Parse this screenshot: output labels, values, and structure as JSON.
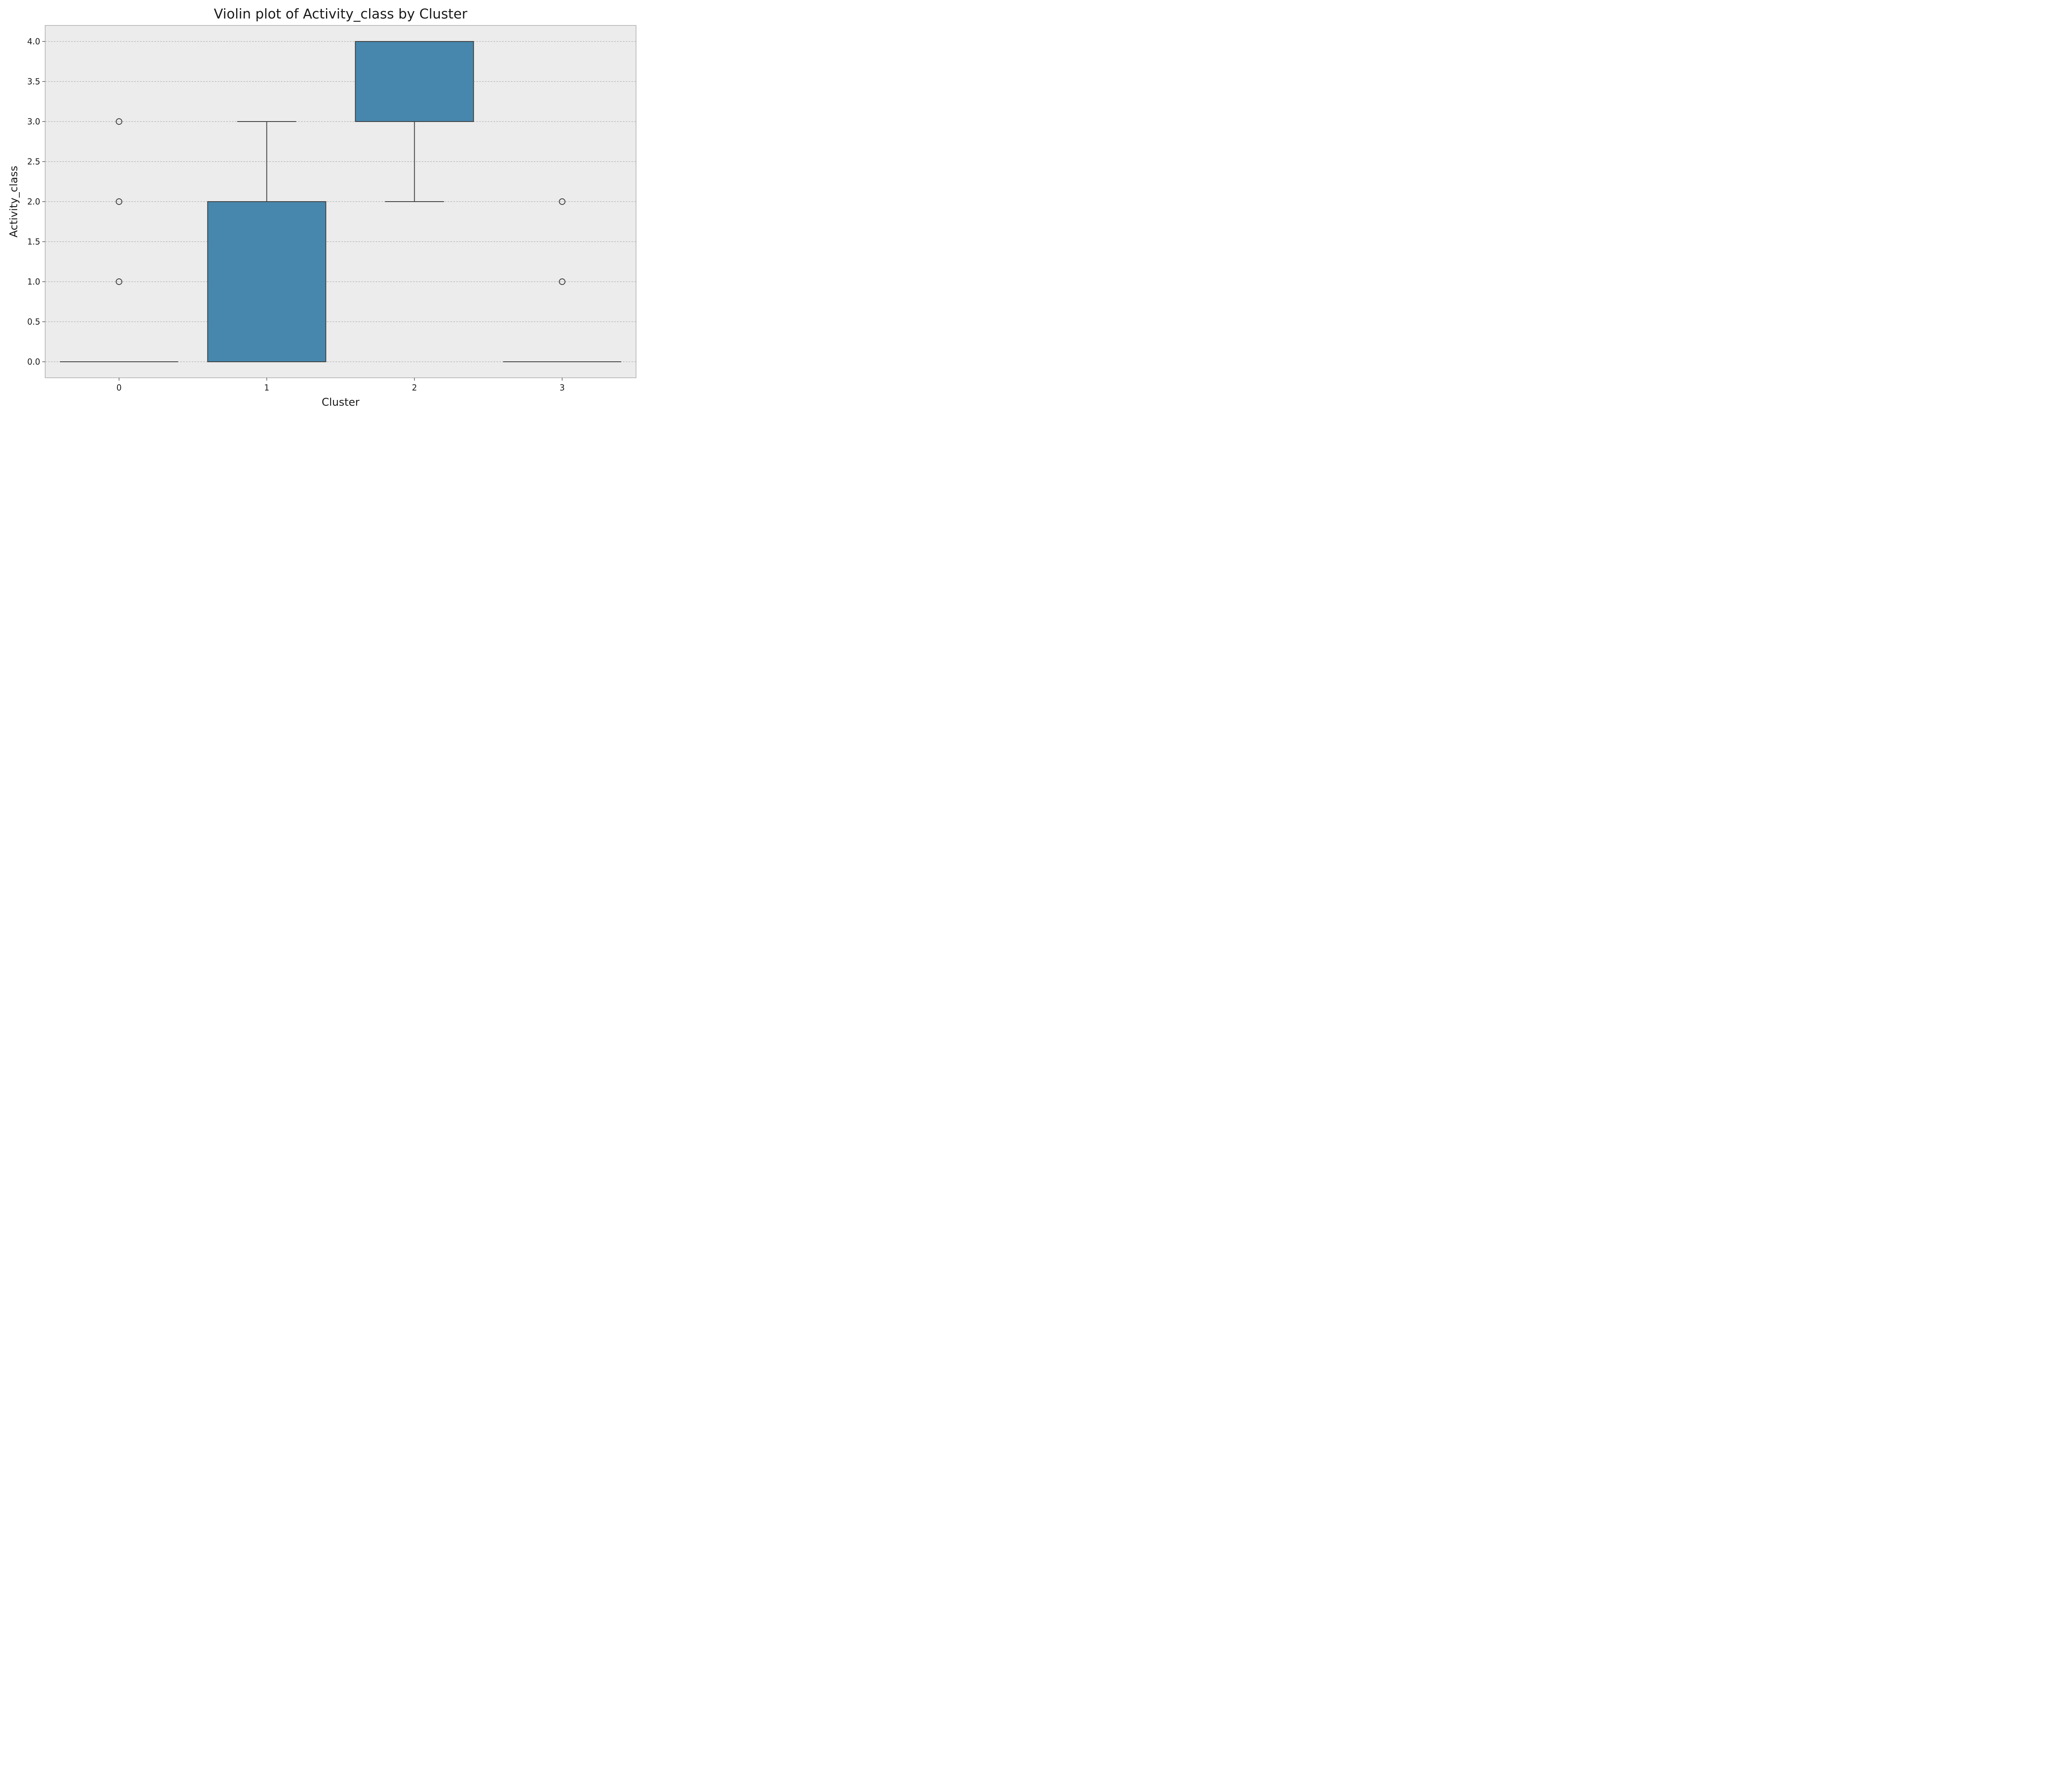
{
  "chart_data": {
    "type": "box",
    "title": "Violin plot of Activity_class by Cluster",
    "xlabel": "Cluster",
    "ylabel": "Activity_class",
    "categories": [
      "0",
      "1",
      "2",
      "3"
    ],
    "ylim": [
      -0.2,
      4.2
    ],
    "yticks": [
      0.0,
      0.5,
      1.0,
      1.5,
      2.0,
      2.5,
      3.0,
      3.5,
      4.0
    ],
    "ytick_labels": [
      "0.0",
      "0.5",
      "1.0",
      "1.5",
      "2.0",
      "2.5",
      "3.0",
      "3.5",
      "4.0"
    ],
    "grid": "horizontal dashed",
    "box_color": "#4787ad",
    "background_color": "#ececec",
    "boxes": [
      {
        "category": "0",
        "q1": 0,
        "median": 0,
        "q3": 0,
        "whisker_low": 0,
        "whisker_high": 0,
        "outliers": [
          1,
          2,
          3
        ]
      },
      {
        "category": "1",
        "q1": 0,
        "median": 0,
        "q3": 2,
        "whisker_low": 0,
        "whisker_high": 3,
        "outliers": []
      },
      {
        "category": "2",
        "q1": 3,
        "median": 4,
        "q3": 4,
        "whisker_low": 2,
        "whisker_high": 4,
        "outliers": []
      },
      {
        "category": "3",
        "q1": 0,
        "median": 0,
        "q3": 0,
        "whisker_low": 0,
        "whisker_high": 0,
        "outliers": [
          1,
          2
        ]
      }
    ]
  }
}
